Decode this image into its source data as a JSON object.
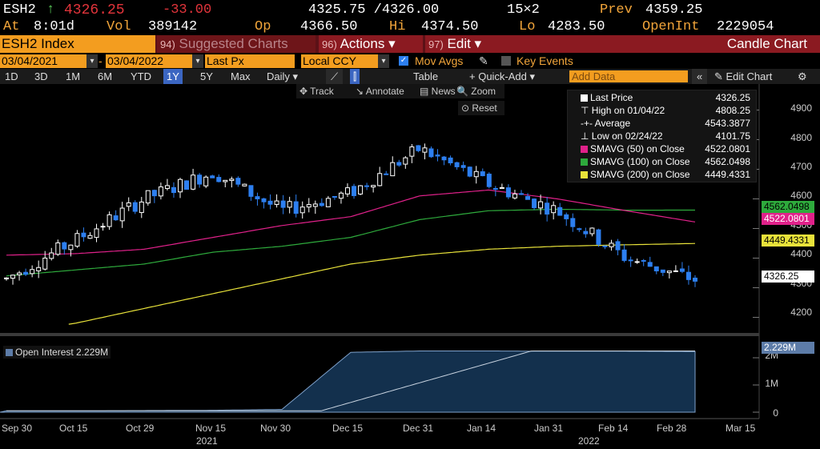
{
  "quote": {
    "ticker": "ESH2",
    "arrow": "↑",
    "last": "4326.25",
    "change": "-33.00",
    "bid_ask": "4325.75 /4326.00",
    "size": "15×2",
    "prev_label": "Prev",
    "prev": "4359.25",
    "at_label": "At",
    "time": "8:01d",
    "vol_label": "Vol",
    "vol": "389142",
    "op_label": "Op",
    "op": "4366.50",
    "hi_label": "Hi",
    "hi": "4374.50",
    "lo_label": "Lo",
    "lo": "4283.50",
    "openint_label": "OpenInt",
    "openint": "2229054"
  },
  "titlebar": {
    "security": "ESH2 Index",
    "suggested_num": "94)",
    "suggested": "Suggested Charts",
    "actions_num": "96)",
    "actions": "Actions ▾",
    "edit_num": "97)",
    "edit": "Edit ▾",
    "chart_type": "Candle Chart"
  },
  "daterow": {
    "start": "03/04/2021",
    "sep": "-",
    "end": "03/04/2022",
    "field": "Last Px",
    "currency": "Local CCY",
    "mov_avgs": "Mov Avgs",
    "key_events": "Key Events"
  },
  "toolbar": {
    "periods": [
      "1D",
      "3D",
      "1M",
      "6M",
      "YTD",
      "1Y",
      "5Y",
      "Max"
    ],
    "selected_period": "1Y",
    "frequency": "Daily ▾",
    "table": "Table",
    "quick_add": "+ Quick-Add ▾",
    "add_data_placeholder": "Add Data",
    "collapse": "«",
    "edit_chart": "✎ Edit Chart",
    "gear": "⚙"
  },
  "gadgets": {
    "track": "✥ Track",
    "annotate": "↘ Annotate",
    "news": "▤ News",
    "zoom": "🔍 Zoom",
    "reset": "⊙ Reset"
  },
  "legend": [
    {
      "swatch": "#ffffff",
      "label": "Last Price",
      "value": "4326.25"
    },
    {
      "swatch": "",
      "label": "⊤ High on 01/04/22",
      "value": "4808.25"
    },
    {
      "swatch": "",
      "label": "-+- Average",
      "value": "4543.3877"
    },
    {
      "swatch": "",
      "label": "⊥ Low on 02/24/22",
      "value": "4101.75"
    },
    {
      "swatch": "#e0218a",
      "label": "SMAVG (50)  on Close",
      "value": "4522.0801"
    },
    {
      "swatch": "#2eaa3c",
      "label": "SMAVG (100) on Close",
      "value": "4562.0498"
    },
    {
      "swatch": "#e8e23a",
      "label": "SMAVG (200) on Close",
      "value": "4449.4331"
    }
  ],
  "price_axis": {
    "ticks": [
      "4900",
      "4800",
      "4700",
      "4600",
      "4500",
      "4400",
      "4300",
      "4200"
    ],
    "tag_sma100": "4562.0498",
    "tag_sma50": "4522.0801",
    "tag_sma200": "4449.4331",
    "tag_last": "4326.25"
  },
  "oi_axis": {
    "ticks": [
      "2M",
      "1M",
      "0"
    ],
    "tag": "2.229M",
    "label": "Open Interest 2.229M"
  },
  "x_axis": {
    "ticks": [
      "Sep 30",
      "Oct 15",
      "Oct 29",
      "Nov 15",
      "Nov 30",
      "Dec 15",
      "Dec 31",
      "Jan 14",
      "Jan 31",
      "Feb 14",
      "Feb 28",
      "Mar 15"
    ],
    "years": [
      "2021",
      "2022"
    ]
  },
  "colors": {
    "up": "#ffffff",
    "down": "#2d7ff0",
    "sma50": "#e0218a",
    "sma100": "#2eaa3c",
    "sma200": "#e8e23a",
    "oi_fill": "#13304d",
    "bloomberg_orange": "#f39d1f"
  },
  "chart_data": {
    "type": "candlestick",
    "x": [
      "Sep 30",
      "Oct 15",
      "Oct 29",
      "Nov 15",
      "Nov 30",
      "Dec 15",
      "Dec 31",
      "Jan 14",
      "Jan 31",
      "Feb 14",
      "Feb 28"
    ],
    "close": [
      4330,
      4460,
      4600,
      4690,
      4560,
      4620,
      4770,
      4650,
      4560,
      4400,
      4326.25
    ],
    "sma50": [
      4410,
      4415,
      4430,
      4470,
      4510,
      4540,
      4610,
      4630,
      4600,
      4560,
      4522.08
    ],
    "sma100": [
      4340,
      4360,
      4380,
      4420,
      4440,
      4470,
      4530,
      4560,
      4565,
      4562,
      4562.05
    ],
    "sma200": [
      4145,
      4180,
      4230,
      4280,
      4330,
      4380,
      4410,
      4430,
      4440,
      4445,
      4449.43
    ],
    "open_interest_millions": [
      0.05,
      0.05,
      0.06,
      0.07,
      0.1,
      2.2,
      2.25,
      2.25,
      2.24,
      2.24,
      2.229
    ],
    "ylim": [
      4150,
      4950
    ],
    "legend_position": "top-right"
  }
}
